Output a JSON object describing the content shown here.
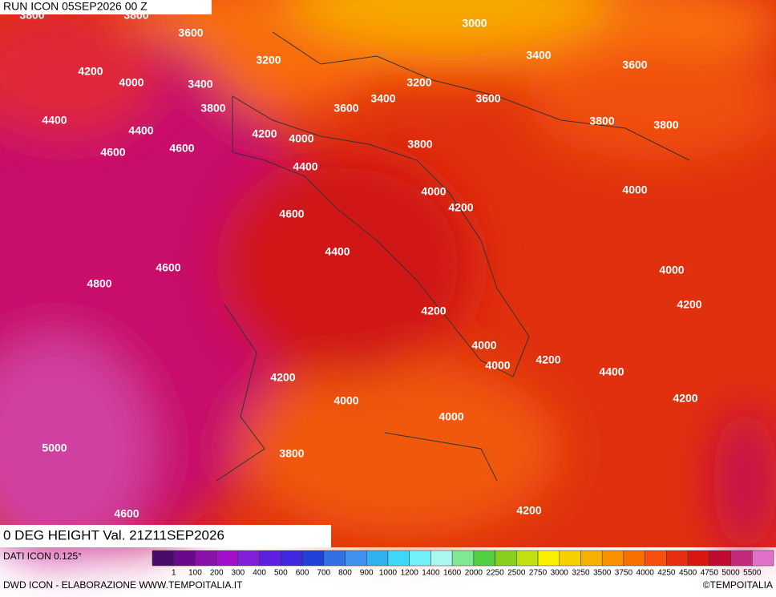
{
  "header": {
    "run": "RUN ICON 05SEP2026 00 Z",
    "valid": "0 DEG HEIGHT Val. 21Z11SEP2026"
  },
  "contour_labels": [
    "3800",
    "3800",
    "3600",
    "3000",
    "3200",
    "3400",
    "3600",
    "4200",
    "4000",
    "3400",
    "3200",
    "3800",
    "3600",
    "3400",
    "3600",
    "4400",
    "4400",
    "4200",
    "4000",
    "3800",
    "3800",
    "4600",
    "4600",
    "3800",
    "4400",
    "4000",
    "4000",
    "4200",
    "4600",
    "4400",
    "4600",
    "4000",
    "4800",
    "4200",
    "4200",
    "4000",
    "4000",
    "4200",
    "4400",
    "4200",
    "4000",
    "4200",
    "4000",
    "5000",
    "3800",
    "4600",
    "4200"
  ],
  "legend": {
    "colors": [
      "#4a0a6a",
      "#6a0a8a",
      "#8a10aa",
      "#a010c8",
      "#8020d8",
      "#6020e0",
      "#4028e0",
      "#2040d8",
      "#3070e0",
      "#4090f0",
      "#30b0f0",
      "#40d8f8",
      "#70f0f8",
      "#a8f8f0",
      "#80e890",
      "#50d040",
      "#88d020",
      "#c0e010",
      "#f8f000",
      "#f8d000",
      "#f8b000",
      "#f89000",
      "#f87000",
      "#f85010",
      "#e83010",
      "#d81810",
      "#c00a30",
      "#c42a7a",
      "#e070c8"
    ],
    "labels": [
      "1",
      "100",
      "200",
      "300",
      "400",
      "500",
      "600",
      "700",
      "800",
      "900",
      "1000",
      "1200",
      "1400",
      "1600",
      "2000",
      "2250",
      "2500",
      "2750",
      "3000",
      "3250",
      "3500",
      "3750",
      "4000",
      "4250",
      "4500",
      "4750",
      "5000",
      "5500"
    ]
  },
  "footer": {
    "source": "DATI ICON 0.125°",
    "credit": "DWD ICON - ELABORAZIONE WWW.TEMPOITALIA.IT",
    "copyright": "©TEMPOITALIA"
  }
}
